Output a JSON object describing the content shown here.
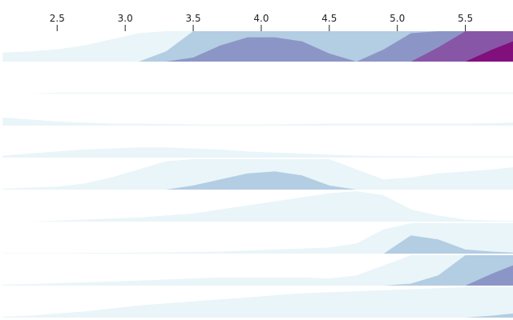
{
  "chart_data": {
    "type": "area",
    "subtype": "ridgeline-horizon",
    "x_ticks": [
      2.5,
      3.0,
      3.5,
      4.0,
      4.5,
      5.0,
      5.5
    ],
    "x_tick_labels": [
      "2.5",
      "3.0",
      "3.5",
      "4.0",
      "4.5",
      "5.0",
      "5.5"
    ],
    "xlim": [
      2.08,
      5.85
    ],
    "axis_position": "top",
    "band_count": 4,
    "band_capacity": 0.15,
    "band_colors": [
      "#e9f5f9",
      "#b3cde3",
      "#8c96c6",
      "#8856a7",
      "#810f7c"
    ],
    "x": [
      2.1,
      2.3,
      2.5,
      2.7,
      2.9,
      3.1,
      3.3,
      3.5,
      3.7,
      3.9,
      4.1,
      4.3,
      4.5,
      4.7,
      4.9,
      5.1,
      5.3,
      5.5,
      5.7,
      5.85
    ],
    "series": [
      {
        "values": [
          0.045,
          0.05,
          0.06,
          0.08,
          0.11,
          0.14,
          0.2,
          0.32,
          0.38,
          0.42,
          0.42,
          0.4,
          0.34,
          0.3,
          0.36,
          0.44,
          0.52,
          0.6,
          0.66,
          0.7
        ]
      },
      {
        "values": [
          0.0,
          0.0,
          0.005,
          0.005,
          0.005,
          0.005,
          0.005,
          0.005,
          0.005,
          0.005,
          0.005,
          0.005,
          0.005,
          0.005,
          0.005,
          0.005,
          0.005,
          0.005,
          0.005,
          0.005
        ]
      },
      {
        "values": [
          0.04,
          0.03,
          0.02,
          0.015,
          0.01,
          0.01,
          0.008,
          0.006,
          0.005,
          0.005,
          0.006,
          0.008,
          0.01,
          0.01,
          0.01,
          0.01,
          0.01,
          0.01,
          0.012,
          0.015
        ]
      },
      {
        "values": [
          0.01,
          0.02,
          0.03,
          0.04,
          0.045,
          0.05,
          0.05,
          0.045,
          0.04,
          0.03,
          0.025,
          0.02,
          0.015,
          0.01,
          0.008,
          0.007,
          0.006,
          0.006,
          0.006,
          0.006
        ]
      },
      {
        "values": [
          0.005,
          0.01,
          0.015,
          0.03,
          0.06,
          0.1,
          0.14,
          0.17,
          0.2,
          0.23,
          0.24,
          0.22,
          0.17,
          0.1,
          0.05,
          0.06,
          0.08,
          0.09,
          0.1,
          0.11
        ]
      },
      {
        "values": [
          0.0,
          0.0,
          0.005,
          0.01,
          0.015,
          0.02,
          0.03,
          0.04,
          0.06,
          0.08,
          0.1,
          0.12,
          0.14,
          0.15,
          0.13,
          0.06,
          0.03,
          0.01,
          0.005,
          0.003
        ]
      },
      {
        "values": [
          0.002,
          0.002,
          0.002,
          0.003,
          0.004,
          0.005,
          0.006,
          0.008,
          0.01,
          0.015,
          0.02,
          0.025,
          0.03,
          0.05,
          0.12,
          0.24,
          0.22,
          0.17,
          0.16,
          0.155
        ]
      },
      {
        "values": [
          0.005,
          0.008,
          0.012,
          0.016,
          0.02,
          0.025,
          0.03,
          0.035,
          0.04,
          0.04,
          0.04,
          0.04,
          0.035,
          0.05,
          0.1,
          0.16,
          0.2,
          0.3,
          0.36,
          0.4
        ]
      },
      {
        "values": [
          0.005,
          0.01,
          0.02,
          0.03,
          0.045,
          0.06,
          0.07,
          0.08,
          0.09,
          0.1,
          0.11,
          0.12,
          0.125,
          0.13,
          0.135,
          0.14,
          0.145,
          0.15,
          0.16,
          0.17
        ]
      }
    ]
  }
}
